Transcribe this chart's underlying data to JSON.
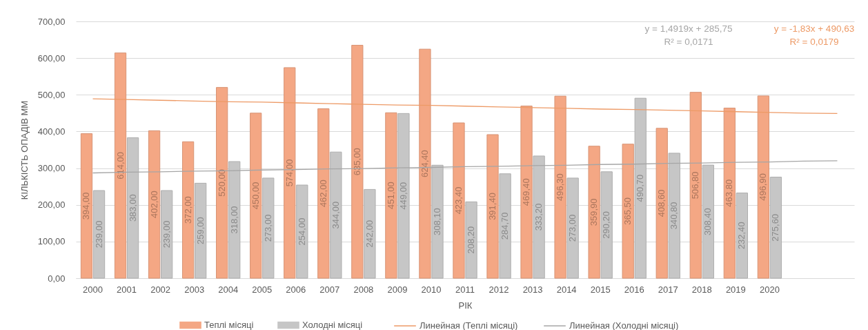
{
  "chart_data": {
    "type": "bar",
    "xlabel": "РІК",
    "ylabel": "КІЛЬКІСТЬ ОПАДІВ ММ",
    "categories": [
      "2000",
      "2001",
      "2002",
      "2003",
      "2004",
      "2005",
      "2006",
      "2007",
      "2008",
      "2009",
      "2010",
      "2011",
      "2012",
      "2013",
      "2014",
      "2015",
      "2016",
      "2017",
      "2018",
      "2019",
      "2020",
      null,
      null
    ],
    "series": [
      {
        "name": "Теплі місяці",
        "color": "#f4a784",
        "values": [
          394,
          614,
          402,
          372,
          520,
          450,
          574,
          462,
          635,
          451,
          624.4,
          423.4,
          391.4,
          469.4,
          496.3,
          359.9,
          365.5,
          408.6,
          506.8,
          463.8,
          496.9,
          null,
          null
        ],
        "value_labels": [
          "394,00",
          "614,00",
          "402,00",
          "372,00",
          "520,00",
          "450,00",
          "574,00",
          "462,00",
          "635,00",
          "451,00",
          "624,40",
          "423,40",
          "391,40",
          "469,40",
          "496,30",
          "359,90",
          "365,50",
          "408,60",
          "506,80",
          "463,80",
          "496,90",
          null,
          null
        ]
      },
      {
        "name": "Холодні місяці",
        "color": "#c6c6c6",
        "values": [
          239,
          383,
          239,
          259,
          318,
          273,
          254,
          344,
          242,
          449,
          308.1,
          208.2,
          284.7,
          333.2,
          273,
          290.2,
          490.7,
          340.8,
          308.4,
          232.4,
          275.6,
          null,
          null
        ],
        "value_labels": [
          "239,00",
          "383,00",
          "239,00",
          "259,00",
          "318,00",
          "273,00",
          "254,00",
          "344,00",
          "242,00",
          "449,00",
          "308,10",
          "208,20",
          "284,70",
          "333,20",
          "273,00",
          "290,20",
          "490,70",
          "340,80",
          "308,40",
          "232,40",
          "275,60",
          null,
          null
        ]
      },
      {
        "name": "Линейная (Теплі місяці)",
        "type": "line",
        "color": "#ed9a66",
        "values": [
          489,
          487,
          485,
          483,
          481,
          480,
          478,
          476,
          474,
          472,
          471,
          469,
          467,
          465,
          463,
          461,
          460,
          458,
          456,
          454,
          452,
          450,
          449
        ]
      },
      {
        "name": "Линейная (Холодні місяці)",
        "type": "line",
        "color": "#a6a6a6",
        "values": [
          287,
          289,
          290,
          292,
          293,
          295,
          296,
          298,
          299,
          301,
          302,
          304,
          305,
          307,
          308,
          310,
          311,
          313,
          314,
          316,
          317,
          319,
          320
        ]
      }
    ],
    "ylim": [
      0,
      700
    ],
    "yticks": [
      {
        "value": 0,
        "label": "0,00"
      },
      {
        "value": 100,
        "label": "100,00"
      },
      {
        "value": 200,
        "label": "200,00"
      },
      {
        "value": 300,
        "label": "300,00"
      },
      {
        "value": 400,
        "label": "400,00"
      },
      {
        "value": 500,
        "label": "500,00"
      },
      {
        "value": 600,
        "label": "600,00"
      },
      {
        "value": 700,
        "label": "700,00"
      }
    ],
    "grid": "y",
    "legend": "bottom",
    "annotations": [
      "y = 1,4919x + 285,75\nR² = 0,0171",
      "y = -1,83x + 490,63\nR² = 0,0179"
    ]
  }
}
